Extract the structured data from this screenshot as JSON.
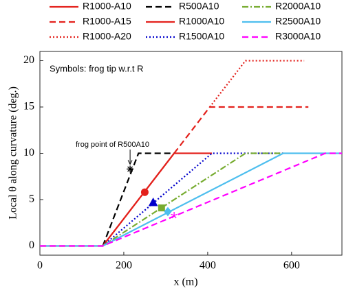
{
  "chart_data": {
    "type": "line",
    "xlabel": "x (m)",
    "ylabel": "Local θ along curvature (deg.)",
    "annotations": [
      "Symbols: frog tip w.r.t R",
      "frog point of R500A10"
    ],
    "xlim": [
      0,
      720
    ],
    "ylim": [
      -1,
      21
    ],
    "xticks": [
      0,
      200,
      400,
      600
    ],
    "yticks": [
      0,
      5,
      10,
      15,
      20
    ],
    "series": [
      {
        "name": "R1000-A10",
        "color": "#e3201b",
        "style": "solid",
        "x": [
          0,
          150,
          320,
          410
        ],
        "values": [
          0,
          0,
          10,
          10
        ]
      },
      {
        "name": "R1000-A15",
        "color": "#e3201b",
        "style": "dashed",
        "x": [
          320,
          405,
          640
        ],
        "values": [
          10,
          15,
          15
        ]
      },
      {
        "name": "R1000-A20",
        "color": "#e3201b",
        "style": "dotted",
        "x": [
          405,
          490,
          630
        ],
        "values": [
          15,
          20,
          20
        ]
      },
      {
        "name": "R500A10",
        "color": "#000000",
        "style": "dashed",
        "x": [
          150,
          235,
          320
        ],
        "values": [
          0,
          10,
          10
        ],
        "tip": [
          215,
          8.3
        ],
        "marker": "asterisk"
      },
      {
        "name": "R1000A10",
        "color": "#e3201b",
        "style": "solid",
        "x": [
          150,
          320
        ],
        "values": [
          0,
          10
        ],
        "tip": [
          250,
          5.8
        ],
        "marker": "circle"
      },
      {
        "name": "R1500A10",
        "color": "#0000cc",
        "style": "dotted",
        "x": [
          150,
          410,
          580
        ],
        "values": [
          0,
          10,
          10
        ],
        "tip": [
          270,
          4.7
        ],
        "marker": "triangle"
      },
      {
        "name": "R2000A10",
        "color": "#77ac30",
        "style": "dashdot",
        "x": [
          150,
          490,
          580
        ],
        "values": [
          0,
          10,
          10
        ],
        "tip": [
          290,
          4.1
        ],
        "marker": "square"
      },
      {
        "name": "R2500A10",
        "color": "#4dbeee",
        "style": "solid",
        "x": [
          0,
          150,
          580,
          720
        ],
        "values": [
          0,
          0,
          10,
          10
        ],
        "tip": [
          305,
          3.7
        ],
        "marker": "diamond"
      },
      {
        "name": "R3000A10",
        "color": "#ff00ff",
        "style": "dashed",
        "x": [
          0,
          150,
          680,
          720
        ],
        "values": [
          0,
          0,
          10,
          10
        ],
        "tip": [
          320,
          3.3
        ],
        "marker": "star"
      }
    ]
  }
}
